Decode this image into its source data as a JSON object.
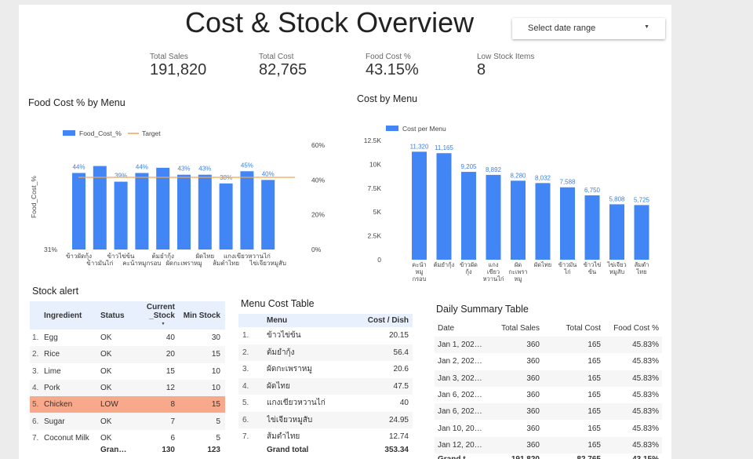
{
  "title": "Cost & Stock Overview",
  "date_range": {
    "label": "Select date range",
    "caret": "▼"
  },
  "kpis": [
    {
      "label": "Total Sales",
      "value": "191,820"
    },
    {
      "label": "Total Cost",
      "value": "82,765"
    },
    {
      "label": "Food Cost %",
      "value": "43.15%"
    },
    {
      "label": "Low Stock Items",
      "value": "8"
    }
  ],
  "chart_data": [
    {
      "type": "bar",
      "title": "Food Cost % by Menu",
      "ylabel": "Food_Cost_%",
      "legend": [
        "Food_Cost_%",
        "Target"
      ],
      "legend_position": "top",
      "categories": [
        "ข้าวผัดกุ้ง",
        "ข้าวมันไก่",
        "ข้าวไข่ข้น",
        "คะน้าหมูกรอบ",
        "ต้มยำกุ้ง",
        "ผัดกะเพราหมู",
        "ผัดไทย",
        "ส้มตำไทย",
        "แกงเขียวหวานไก่",
        "ไข่เจียวหมูสับ"
      ],
      "values": [
        44,
        48,
        39,
        44,
        47,
        43,
        43,
        38,
        45,
        40
      ],
      "data_labels": [
        "44%",
        "",
        "39%",
        "44%",
        "",
        "43%",
        "43%",
        "38%",
        "45%",
        "40%"
      ],
      "target": 41.5,
      "left_axis_label": "31%",
      "right_axis_ticks": [
        "60%",
        "40%",
        "20%",
        "0%"
      ],
      "right_ylim": [
        0,
        60
      ],
      "colors": {
        "bar": "#4285f4",
        "target": "#f6a34f"
      }
    },
    {
      "type": "bar",
      "title": "Cost by Menu",
      "legend": [
        "Cost per Menu"
      ],
      "legend_position": "top-left",
      "categories": [
        "คะน้าหมูกรอบ",
        "ต้มยำกุ้ง",
        "ข้าวผัดกุ้ง",
        "แกงเขียวหวานไก่",
        "ผัดกะเพราหมู",
        "ผัดไทย",
        "ข้าวมันไก่",
        "ข้าวไข่ข้น",
        "ไข่เจียวหมูสับ",
        "ส้มตำไทย"
      ],
      "category_lines": [
        [
          "คะน้า",
          "หมู",
          "กรอบ"
        ],
        [
          "ต้มยำกุ้ง"
        ],
        [
          "ข้าวผัด",
          "กุ้ง"
        ],
        [
          "แกง",
          "เขียว",
          "หวานไก่"
        ],
        [
          "ผัด",
          "กะเพรา",
          "หมู"
        ],
        [
          "ผัดไทย"
        ],
        [
          "ข้าวมัน",
          "ไก่"
        ],
        [
          "ข้าวไข่",
          "ข้น"
        ],
        [
          "ไข่เจียว",
          "หมูสับ"
        ],
        [
          "ส้มตำ",
          "ไทย"
        ]
      ],
      "values": [
        11320,
        11165,
        9205,
        8892,
        8280,
        8032,
        7588,
        6750,
        5808,
        5725
      ],
      "data_labels": [
        "11,320",
        "11,165",
        "9,205",
        "8,892",
        "8,280",
        "8,032",
        "7,588",
        "6,750",
        "5,808",
        "5,725"
      ],
      "y_ticks": [
        "0",
        "2.5K",
        "5K",
        "7.5K",
        "10K",
        "12.5K"
      ],
      "ylim": [
        0,
        12500
      ],
      "colors": {
        "bar": "#4285f4"
      }
    }
  ],
  "stock_alert": {
    "title": "Stock alert",
    "headers": [
      "Ingredient",
      "Status",
      "Current _Stock",
      "Min Stock"
    ],
    "header_current_lines": [
      "Current",
      "_Stock"
    ],
    "sort_icon": "▼",
    "rows": [
      {
        "idx": "1.",
        "ingredient": "Egg",
        "status": "OK",
        "current": "40",
        "min": "30",
        "highlight": false
      },
      {
        "idx": "2.",
        "ingredient": "Rice",
        "status": "OK",
        "current": "20",
        "min": "15",
        "highlight": false
      },
      {
        "idx": "3.",
        "ingredient": "Lime",
        "status": "OK",
        "current": "15",
        "min": "10",
        "highlight": false
      },
      {
        "idx": "4.",
        "ingredient": "Pork",
        "status": "OK",
        "current": "12",
        "min": "10",
        "highlight": false
      },
      {
        "idx": "5.",
        "ingredient": "Chicken",
        "status": "LOW",
        "current": "8",
        "min": "15",
        "highlight": true
      },
      {
        "idx": "6.",
        "ingredient": "Sugar",
        "status": "OK",
        "current": "7",
        "min": "5",
        "highlight": false
      },
      {
        "idx": "7.",
        "ingredient": "Coconut Milk",
        "status": "OK",
        "current": "6",
        "min": "5",
        "highlight": false
      }
    ],
    "total": {
      "label": "Gran…",
      "current": "130",
      "min": "123"
    }
  },
  "menu_cost": {
    "title": "Menu Cost Table",
    "headers": [
      "Menu",
      "Cost / Dish"
    ],
    "rows": [
      {
        "idx": "1.",
        "menu": "ข้าวไข่ข้น",
        "cost": "20.15"
      },
      {
        "idx": "2.",
        "menu": "ต้มยำกุ้ง",
        "cost": "56.4"
      },
      {
        "idx": "3.",
        "menu": "ผัดกะเพราหมู",
        "cost": "20.6"
      },
      {
        "idx": "4.",
        "menu": "ผัดไทย",
        "cost": "47.5"
      },
      {
        "idx": "5.",
        "menu": "แกงเขียวหวานไก่",
        "cost": "40"
      },
      {
        "idx": "6.",
        "menu": "ไข่เจียวหมูสับ",
        "cost": "24.95"
      },
      {
        "idx": "7.",
        "menu": "ส้มตำไทย",
        "cost": "12.74"
      }
    ],
    "total": {
      "label": "Grand total",
      "cost": "353.34"
    }
  },
  "daily_summary": {
    "title": "Daily Summary Table",
    "headers": [
      "Date",
      "Total Sales",
      "Total Cost",
      "Food Cost %"
    ],
    "rows": [
      {
        "date": "Jan 1, 202…",
        "sales": "360",
        "cost": "165",
        "pct": "45.83%"
      },
      {
        "date": "Jan 2, 202…",
        "sales": "360",
        "cost": "165",
        "pct": "45.83%"
      },
      {
        "date": "Jan 3, 202…",
        "sales": "360",
        "cost": "165",
        "pct": "45.83%"
      },
      {
        "date": "Jan 6, 202…",
        "sales": "360",
        "cost": "165",
        "pct": "45.83%"
      },
      {
        "date": "Jan 6, 202…",
        "sales": "360",
        "cost": "165",
        "pct": "45.83%"
      },
      {
        "date": "Jan 10, 20…",
        "sales": "360",
        "cost": "165",
        "pct": "45.83%"
      },
      {
        "date": "Jan 12, 20…",
        "sales": "360",
        "cost": "165",
        "pct": "45.83%"
      }
    ],
    "total": {
      "label": "Grand t…",
      "sales": "191,820",
      "cost": "82,765",
      "pct": "43.15%"
    }
  }
}
